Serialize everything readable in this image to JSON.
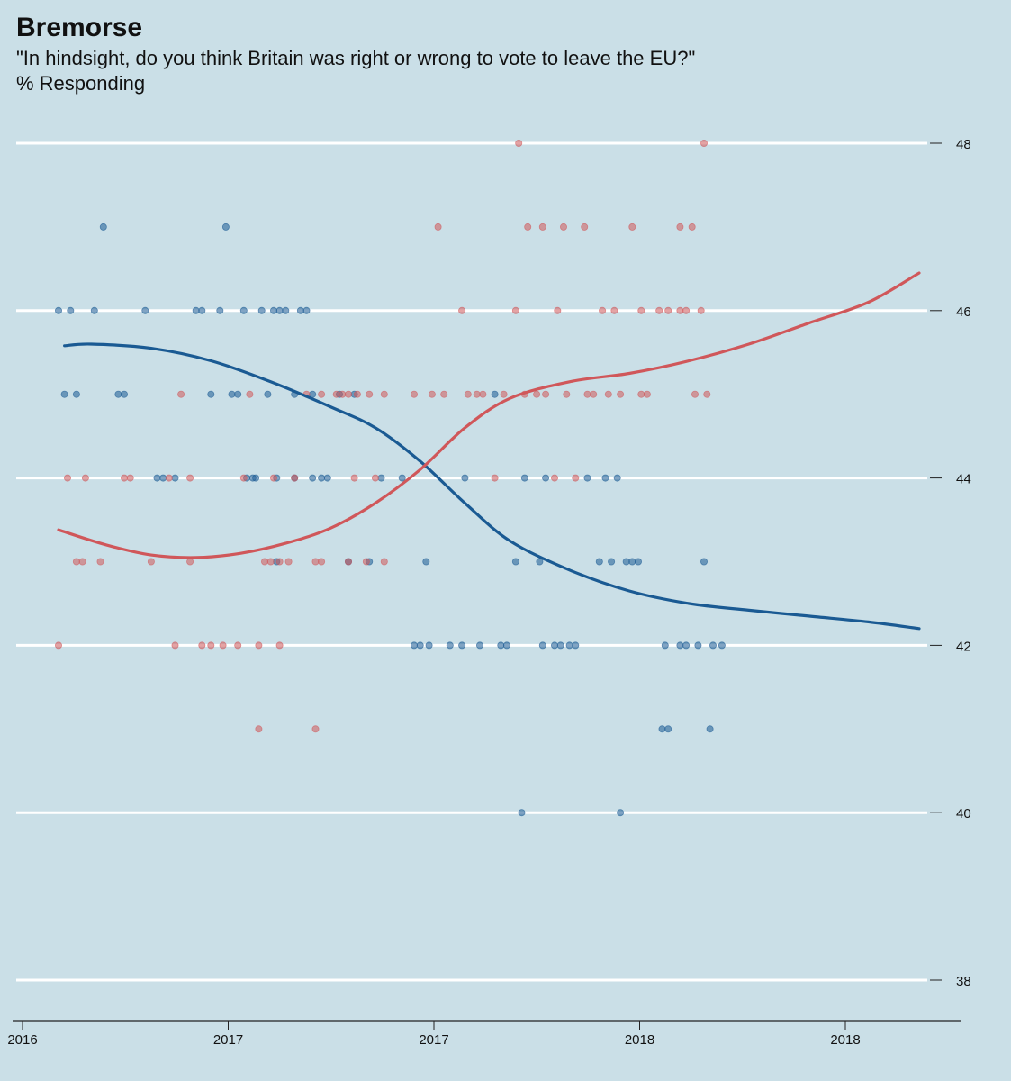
{
  "header": {
    "title": "Bremorse",
    "subtitle": "\"In hindsight, do you think Britain was right or wrong to vote to leave the EU?\"",
    "unit_label": "% Responding"
  },
  "chart_data": {
    "type": "scatter",
    "title": "Bremorse",
    "subtitle": "\"In hindsight, do you think Britain was right or wrong to vote to leave the EU?\"",
    "ylabel": "% Responding",
    "xlabel": "",
    "x_domain": [
      2016.0,
      2018.55
    ],
    "ylim": [
      38,
      48
    ],
    "y_ticks": [
      38,
      40,
      42,
      44,
      46,
      48
    ],
    "x_ticks": [
      {
        "value": 2016.0,
        "label": "2016"
      },
      {
        "value": 2016.5,
        "label": "2017"
      },
      {
        "value": 2017.0,
        "label": "2017"
      },
      {
        "value": 2017.5,
        "label": "2018"
      },
      {
        "value": 2018.0,
        "label": "2018"
      }
    ],
    "grid": true,
    "y_axis_side": "right",
    "series": [
      {
        "color": "#1a5a93",
        "points": [
          [
            2016.09,
            46
          ],
          [
            2016.13,
            46
          ],
          [
            2016.21,
            46
          ],
          [
            2016.38,
            46
          ],
          [
            2016.55,
            46
          ],
          [
            2016.57,
            46
          ],
          [
            2016.63,
            46
          ],
          [
            2016.71,
            46
          ],
          [
            2016.77,
            46
          ],
          [
            2016.81,
            46
          ],
          [
            2016.83,
            46
          ],
          [
            2016.85,
            46
          ],
          [
            2016.9,
            46
          ],
          [
            2016.92,
            46
          ],
          [
            2016.11,
            45
          ],
          [
            2016.15,
            45
          ],
          [
            2016.29,
            45
          ],
          [
            2016.31,
            45
          ],
          [
            2016.6,
            45
          ],
          [
            2016.67,
            45
          ],
          [
            2016.69,
            45
          ],
          [
            2016.79,
            45
          ],
          [
            2016.88,
            45
          ],
          [
            2016.94,
            45
          ],
          [
            2017.03,
            45
          ],
          [
            2017.08,
            45
          ],
          [
            2017.55,
            45
          ],
          [
            2016.42,
            44
          ],
          [
            2016.44,
            44
          ],
          [
            2016.48,
            44
          ],
          [
            2016.72,
            44
          ],
          [
            2016.74,
            44
          ],
          [
            2016.75,
            44
          ],
          [
            2016.82,
            44
          ],
          [
            2016.88,
            44
          ],
          [
            2016.94,
            44
          ],
          [
            2016.97,
            44
          ],
          [
            2016.99,
            44
          ],
          [
            2017.17,
            44
          ],
          [
            2017.24,
            44
          ],
          [
            2017.45,
            44
          ],
          [
            2017.65,
            44
          ],
          [
            2017.72,
            44
          ],
          [
            2017.86,
            44
          ],
          [
            2017.92,
            44
          ],
          [
            2017.96,
            44
          ],
          [
            2016.82,
            43
          ],
          [
            2017.06,
            43
          ],
          [
            2017.13,
            43
          ],
          [
            2017.32,
            43
          ],
          [
            2017.62,
            43
          ],
          [
            2017.7,
            43
          ],
          [
            2017.9,
            43
          ],
          [
            2017.94,
            43
          ],
          [
            2017.99,
            43
          ],
          [
            2018.01,
            43
          ],
          [
            2018.03,
            43
          ],
          [
            2018.25,
            43
          ],
          [
            2017.28,
            42
          ],
          [
            2017.3,
            42
          ],
          [
            2017.33,
            42
          ],
          [
            2017.4,
            42
          ],
          [
            2017.44,
            42
          ],
          [
            2017.5,
            42
          ],
          [
            2017.57,
            42
          ],
          [
            2017.59,
            42
          ],
          [
            2017.71,
            42
          ],
          [
            2017.75,
            42
          ],
          [
            2017.77,
            42
          ],
          [
            2017.8,
            42
          ],
          [
            2017.82,
            42
          ],
          [
            2018.12,
            42
          ],
          [
            2018.17,
            42
          ],
          [
            2018.19,
            42
          ],
          [
            2018.23,
            42
          ],
          [
            2018.28,
            42
          ],
          [
            2018.31,
            42
          ],
          [
            2018.11,
            41
          ],
          [
            2018.13,
            41
          ],
          [
            2018.27,
            41
          ],
          [
            2017.64,
            40
          ],
          [
            2017.97,
            40
          ],
          [
            2016.24,
            47
          ],
          [
            2016.65,
            47
          ]
        ],
        "smooth": [
          [
            2016.11,
            45.58
          ],
          [
            2016.2,
            45.6
          ],
          [
            2016.4,
            45.55
          ],
          [
            2016.6,
            45.4
          ],
          [
            2016.8,
            45.15
          ],
          [
            2017.0,
            44.85
          ],
          [
            2017.15,
            44.6
          ],
          [
            2017.3,
            44.2
          ],
          [
            2017.45,
            43.7
          ],
          [
            2017.6,
            43.25
          ],
          [
            2017.8,
            42.9
          ],
          [
            2018.0,
            42.65
          ],
          [
            2018.2,
            42.5
          ],
          [
            2018.4,
            42.42
          ],
          [
            2018.6,
            42.35
          ],
          [
            2018.8,
            42.28
          ],
          [
            2018.97,
            42.2
          ]
        ]
      },
      {
        "color": "#d0575a",
        "points": [
          [
            2016.09,
            42
          ],
          [
            2016.48,
            42
          ],
          [
            2016.57,
            42
          ],
          [
            2016.6,
            42
          ],
          [
            2016.64,
            42
          ],
          [
            2016.69,
            42
          ],
          [
            2016.76,
            42
          ],
          [
            2016.83,
            42
          ],
          [
            2016.76,
            41
          ],
          [
            2016.95,
            41
          ],
          [
            2016.12,
            44
          ],
          [
            2016.18,
            44
          ],
          [
            2016.31,
            44
          ],
          [
            2016.33,
            44
          ],
          [
            2016.46,
            44
          ],
          [
            2016.53,
            44
          ],
          [
            2016.71,
            44
          ],
          [
            2016.81,
            44
          ],
          [
            2016.88,
            44
          ],
          [
            2017.08,
            44
          ],
          [
            2017.15,
            44
          ],
          [
            2017.55,
            44
          ],
          [
            2017.75,
            44
          ],
          [
            2017.82,
            44
          ],
          [
            2016.15,
            43
          ],
          [
            2016.17,
            43
          ],
          [
            2016.23,
            43
          ],
          [
            2016.4,
            43
          ],
          [
            2016.53,
            43
          ],
          [
            2016.78,
            43
          ],
          [
            2016.8,
            43
          ],
          [
            2016.83,
            43
          ],
          [
            2016.86,
            43
          ],
          [
            2016.95,
            43
          ],
          [
            2016.97,
            43
          ],
          [
            2017.06,
            43
          ],
          [
            2017.12,
            43
          ],
          [
            2017.18,
            43
          ],
          [
            2016.5,
            45
          ],
          [
            2016.73,
            45
          ],
          [
            2016.92,
            45
          ],
          [
            2016.97,
            45
          ],
          [
            2017.02,
            45
          ],
          [
            2017.04,
            45
          ],
          [
            2017.06,
            45
          ],
          [
            2017.09,
            45
          ],
          [
            2017.13,
            45
          ],
          [
            2017.18,
            45
          ],
          [
            2017.28,
            45
          ],
          [
            2017.34,
            45
          ],
          [
            2017.38,
            45
          ],
          [
            2017.46,
            45
          ],
          [
            2017.49,
            45
          ],
          [
            2017.51,
            45
          ],
          [
            2017.58,
            45
          ],
          [
            2017.65,
            45
          ],
          [
            2017.69,
            45
          ],
          [
            2017.72,
            45
          ],
          [
            2017.79,
            45
          ],
          [
            2017.86,
            45
          ],
          [
            2017.88,
            45
          ],
          [
            2017.93,
            45
          ],
          [
            2017.97,
            45
          ],
          [
            2018.04,
            45
          ],
          [
            2018.06,
            45
          ],
          [
            2018.22,
            45
          ],
          [
            2018.26,
            45
          ],
          [
            2017.44,
            46
          ],
          [
            2017.62,
            46
          ],
          [
            2017.76,
            46
          ],
          [
            2017.91,
            46
          ],
          [
            2017.95,
            46
          ],
          [
            2018.04,
            46
          ],
          [
            2018.1,
            46
          ],
          [
            2018.13,
            46
          ],
          [
            2018.17,
            46
          ],
          [
            2018.19,
            46
          ],
          [
            2018.24,
            46
          ],
          [
            2017.36,
            47
          ],
          [
            2017.66,
            47
          ],
          [
            2017.71,
            47
          ],
          [
            2017.78,
            47
          ],
          [
            2017.85,
            47
          ],
          [
            2018.01,
            47
          ],
          [
            2018.17,
            47
          ],
          [
            2018.21,
            47
          ],
          [
            2017.63,
            48
          ],
          [
            2018.25,
            48
          ]
        ],
        "smooth": [
          [
            2016.09,
            43.38
          ],
          [
            2016.25,
            43.2
          ],
          [
            2016.4,
            43.08
          ],
          [
            2016.55,
            43.05
          ],
          [
            2016.7,
            43.1
          ],
          [
            2016.85,
            43.22
          ],
          [
            2017.0,
            43.4
          ],
          [
            2017.15,
            43.7
          ],
          [
            2017.3,
            44.1
          ],
          [
            2017.45,
            44.6
          ],
          [
            2017.6,
            44.95
          ],
          [
            2017.8,
            45.15
          ],
          [
            2018.0,
            45.25
          ],
          [
            2018.2,
            45.4
          ],
          [
            2018.4,
            45.6
          ],
          [
            2018.6,
            45.85
          ],
          [
            2018.8,
            46.1
          ],
          [
            2018.97,
            46.45
          ]
        ]
      }
    ]
  }
}
